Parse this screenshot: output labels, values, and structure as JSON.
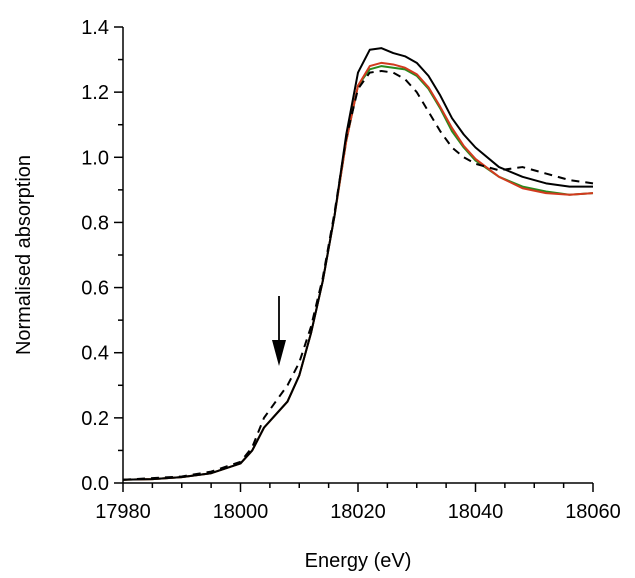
{
  "chart_data": {
    "type": "line",
    "xlabel": "Energy (eV)",
    "ylabel": "Normalised absorption",
    "x": [
      17980,
      17985,
      17990,
      17995,
      18000,
      18002,
      18004,
      18006,
      18008,
      18010,
      18012,
      18014,
      18016,
      18018,
      18020,
      18022,
      18024,
      18026,
      18028,
      18030,
      18032,
      18034,
      18036,
      18038,
      18040,
      18044,
      18048,
      18052,
      18056,
      18060
    ],
    "series": [
      {
        "color": "#2a8a1e",
        "linestyle": "solid",
        "values": [
          0.01,
          0.012,
          0.018,
          0.03,
          0.06,
          0.1,
          0.17,
          0.21,
          0.25,
          0.33,
          0.46,
          0.62,
          0.82,
          1.05,
          1.22,
          1.27,
          1.28,
          1.275,
          1.27,
          1.25,
          1.21,
          1.15,
          1.08,
          1.03,
          0.99,
          0.94,
          0.91,
          0.895,
          0.885,
          0.89
        ]
      },
      {
        "color": "#d23a1e",
        "linestyle": "solid",
        "values": [
          0.01,
          0.012,
          0.018,
          0.03,
          0.06,
          0.1,
          0.17,
          0.21,
          0.25,
          0.33,
          0.46,
          0.62,
          0.82,
          1.05,
          1.22,
          1.28,
          1.29,
          1.285,
          1.275,
          1.255,
          1.215,
          1.155,
          1.09,
          1.035,
          0.995,
          0.94,
          0.905,
          0.89,
          0.885,
          0.89
        ]
      },
      {
        "color": "#000000",
        "linestyle": "solid",
        "values": [
          0.01,
          0.012,
          0.018,
          0.03,
          0.06,
          0.1,
          0.17,
          0.21,
          0.25,
          0.33,
          0.46,
          0.62,
          0.82,
          1.07,
          1.26,
          1.33,
          1.335,
          1.32,
          1.31,
          1.29,
          1.25,
          1.19,
          1.12,
          1.07,
          1.03,
          0.97,
          0.94,
          0.92,
          0.91,
          0.91
        ]
      },
      {
        "color": "#000000",
        "linestyle": "dashed",
        "values": [
          0.01,
          0.015,
          0.02,
          0.035,
          0.065,
          0.11,
          0.2,
          0.25,
          0.3,
          0.37,
          0.48,
          0.63,
          0.83,
          1.06,
          1.21,
          1.26,
          1.265,
          1.26,
          1.24,
          1.2,
          1.14,
          1.08,
          1.03,
          1.0,
          0.98,
          0.96,
          0.97,
          0.95,
          0.93,
          0.92
        ]
      }
    ],
    "xlim": [
      17980,
      18060
    ],
    "xticks": [
      17980,
      18000,
      18020,
      18040,
      18060
    ],
    "xminorticks": [
      17985,
      17990,
      17995,
      18005,
      18010,
      18015,
      18025,
      18030,
      18035,
      18045,
      18050,
      18055
    ],
    "ylim": [
      0,
      1.4
    ],
    "yticks": [
      {
        "value": 0,
        "label": "0.0"
      },
      0.2,
      0.4,
      0.6,
      0.8,
      {
        "value": 1,
        "label": "1.0"
      },
      1.2,
      1.4
    ],
    "yminorticks": [
      0.1,
      0.3,
      0.5,
      0.7,
      0.9,
      1.1,
      1.3
    ],
    "grid": false
  }
}
